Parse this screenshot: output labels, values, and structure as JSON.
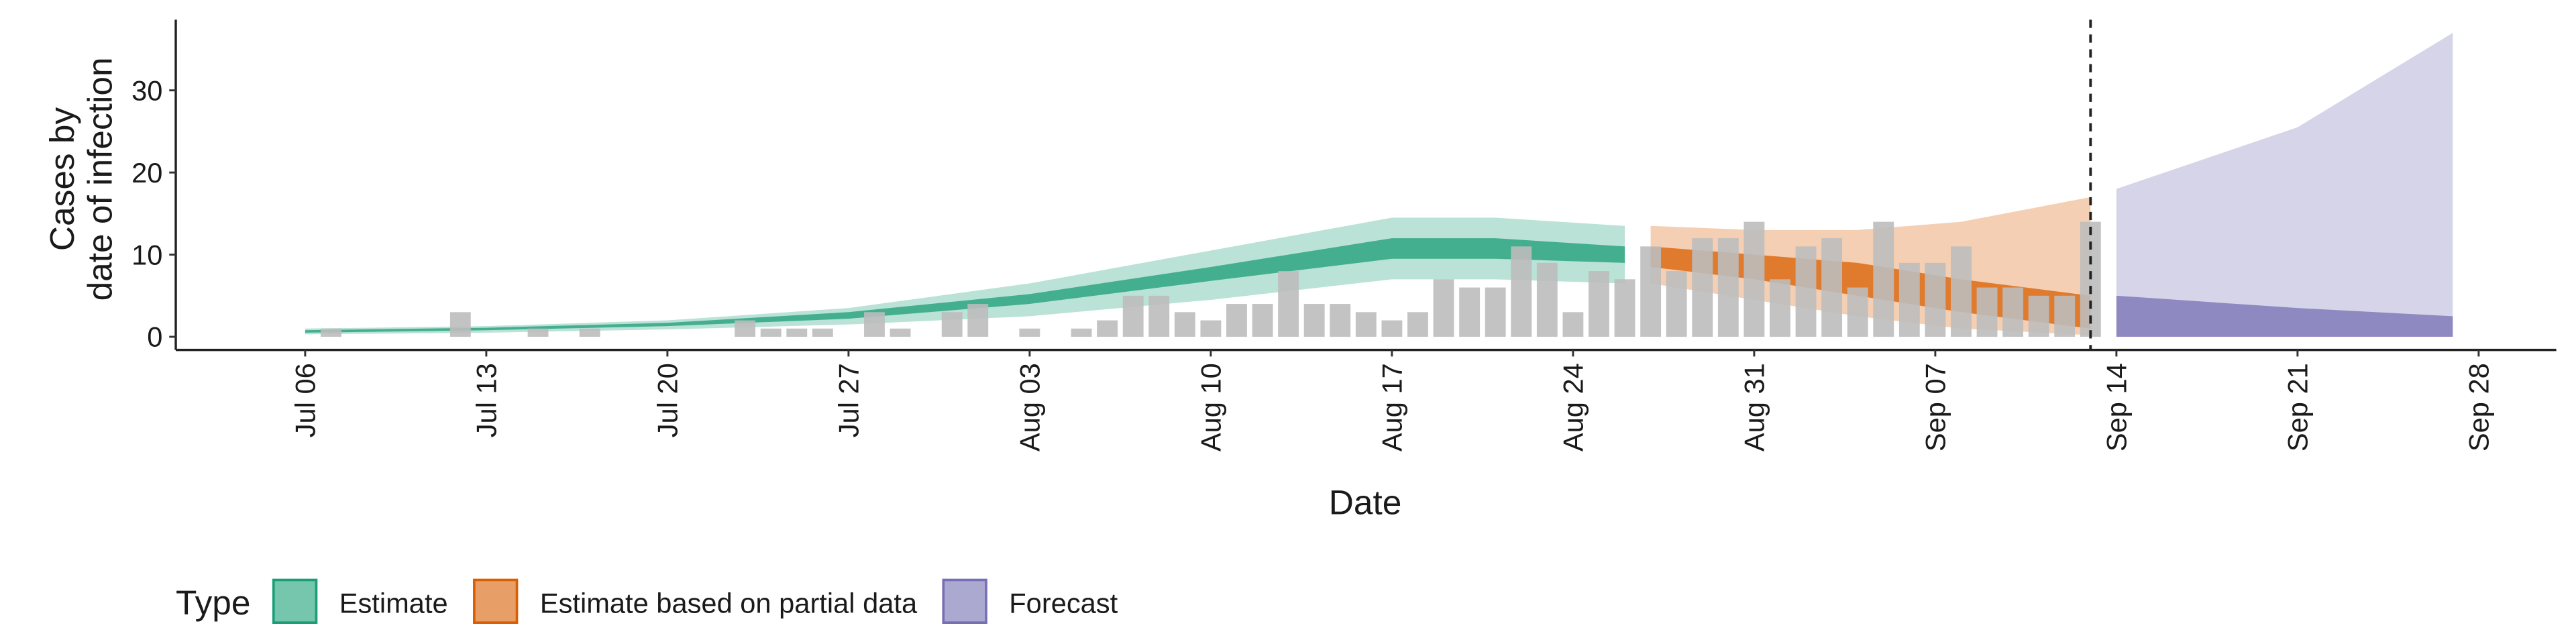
{
  "chart_data": {
    "type": "ribbon-bar",
    "x_label": "Date",
    "y_label": [
      "Cases by",
      "date of infection"
    ],
    "legend_title": "Type",
    "xlim": [
      "Jul 01",
      "Oct 01"
    ],
    "ylim": [
      -1.6,
      38.6
    ],
    "xticks": [
      "Jul 06",
      "Jul 13",
      "Jul 20",
      "Jul 27",
      "Aug 03",
      "Aug 10",
      "Aug 17",
      "Aug 24",
      "Aug 31",
      "Sep 07",
      "Sep 14",
      "Sep 21",
      "Sep 28"
    ],
    "yticks": [
      0,
      10,
      20,
      30
    ],
    "vline": "Sep 13",
    "bars": {
      "color": "#bdbdbd",
      "x": [
        "Jul 06",
        "Jul 07",
        "Jul 08",
        "Jul 09",
        "Jul 10",
        "Jul 11",
        "Jul 12",
        "Jul 13",
        "Jul 14",
        "Jul 15",
        "Jul 16",
        "Jul 17",
        "Jul 18",
        "Jul 19",
        "Jul 20",
        "Jul 21",
        "Jul 22",
        "Jul 23",
        "Jul 24",
        "Jul 25",
        "Jul 26",
        "Jul 27",
        "Jul 28",
        "Jul 29",
        "Jul 30",
        "Jul 31",
        "Aug 01",
        "Aug 02",
        "Aug 03",
        "Aug 04",
        "Aug 05",
        "Aug 06",
        "Aug 07",
        "Aug 08",
        "Aug 09",
        "Aug 10",
        "Aug 11",
        "Aug 12",
        "Aug 13",
        "Aug 14",
        "Aug 15",
        "Aug 16",
        "Aug 17",
        "Aug 18",
        "Aug 19",
        "Aug 20",
        "Aug 21",
        "Aug 22",
        "Aug 23",
        "Aug 24",
        "Aug 25",
        "Aug 26",
        "Aug 27",
        "Aug 28",
        "Aug 29",
        "Aug 30",
        "Aug 31",
        "Sep 01",
        "Sep 02",
        "Sep 03",
        "Sep 04",
        "Sep 05",
        "Sep 06",
        "Sep 07",
        "Sep 08",
        "Sep 09",
        "Sep 10",
        "Sep 11",
        "Sep 12",
        "Sep 13"
      ],
      "values": [
        0,
        1,
        0,
        0,
        0,
        0,
        3,
        0,
        0,
        1,
        0,
        1,
        0,
        0,
        0,
        0,
        0,
        2,
        1,
        1,
        1,
        0,
        3,
        1,
        0,
        3,
        4,
        0,
        1,
        0,
        1,
        2,
        5,
        5,
        3,
        2,
        4,
        4,
        8,
        4,
        4,
        3,
        2,
        3,
        7,
        6,
        6,
        11,
        9,
        3,
        8,
        7,
        11,
        8,
        12,
        12,
        14,
        7,
        11,
        12,
        6,
        14,
        9,
        9,
        11,
        6,
        6,
        5,
        5,
        14
      ]
    },
    "series": [
      {
        "name": "Estimate",
        "color": "#1b9e77",
        "x": [
          "Jul 06",
          "Jul 13",
          "Jul 20",
          "Jul 27",
          "Aug 03",
          "Aug 10",
          "Aug 17",
          "Aug 21",
          "Aug 26"
        ],
        "ci90_low": [
          0.3,
          0.5,
          0.9,
          1.5,
          2.5,
          4.5,
          7,
          7,
          6.5
        ],
        "ci90_high": [
          1,
          1.3,
          2,
          3.5,
          6.5,
          10.5,
          14.5,
          14.5,
          13.5
        ],
        "ci50_low": [
          0.5,
          0.8,
          1.3,
          2.2,
          4,
          6.8,
          9.5,
          9.5,
          9
        ],
        "ci50_high": [
          0.8,
          1.1,
          1.7,
          3,
          5.2,
          8.5,
          12,
          12,
          11
        ]
      },
      {
        "name": "Estimate based on partial data",
        "color": "#d95f02",
        "x": [
          "Aug 27",
          "Aug 31",
          "Sep 04",
          "Sep 08",
          "Sep 13"
        ],
        "ci90_low": [
          6.5,
          4.5,
          2.5,
          1,
          0.2
        ],
        "ci90_high": [
          13.5,
          13,
          13,
          14,
          17
        ],
        "ci50_low": [
          8.5,
          7,
          5,
          3,
          1
        ],
        "ci50_high": [
          11,
          10,
          9,
          7,
          5
        ]
      },
      {
        "name": "Forecast",
        "color": "#7570b3",
        "x": [
          "Sep 14",
          "Sep 21",
          "Sep 27"
        ],
        "ci90_low": [
          0,
          0,
          0
        ],
        "ci90_high": [
          18,
          25.5,
          37
        ],
        "ci50_low": [
          0,
          0,
          0
        ],
        "ci50_high": [
          5,
          3.5,
          2.5
        ]
      }
    ]
  }
}
